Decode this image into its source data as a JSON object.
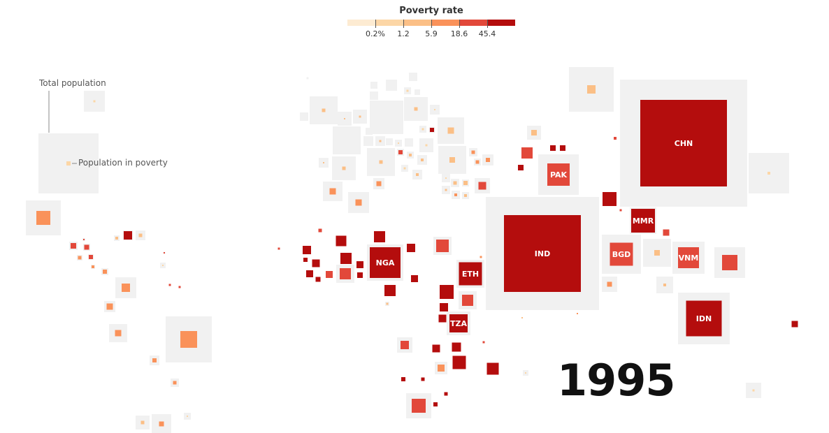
{
  "chart_data": {
    "type": "cartogram",
    "title": "Poverty rate",
    "year": "1995",
    "legend": {
      "total_population_label": "Total population",
      "population_in_poverty_label": "Population in poverty",
      "color_bins": [
        {
          "max": 0.2,
          "color": "#fdebd2"
        },
        {
          "max": 1.2,
          "color": "#fcd6a6"
        },
        {
          "max": 5.9,
          "color": "#fbbf86"
        },
        {
          "max": 18.6,
          "color": "#fa925a"
        },
        {
          "max": 45.4,
          "color": "#e2483a"
        },
        {
          "max": 100,
          "color": "#b40d0d"
        }
      ],
      "tick_labels": [
        "0.2%",
        "1.2",
        "5.9",
        "18.6",
        "45.4"
      ]
    },
    "labeled_countries": [
      {
        "code": "CHN",
        "poverty_rate_pct": 60
      },
      {
        "code": "IND",
        "poverty_rate_pct": 50
      },
      {
        "code": "PAK",
        "poverty_rate_pct": 35
      },
      {
        "code": "NGA",
        "poverty_rate_pct": 60
      },
      {
        "code": "ETH",
        "poverty_rate_pct": 65
      },
      {
        "code": "TZA",
        "poverty_rate_pct": 80
      },
      {
        "code": "MMR",
        "poverty_rate_pct": 55
      },
      {
        "code": "BGD",
        "poverty_rate_pct": 35
      },
      {
        "code": "VNM",
        "poverty_rate_pct": 40
      },
      {
        "code": "IDN",
        "poverty_rate_pct": 50
      }
    ],
    "background_color": "#f1f1f1"
  }
}
